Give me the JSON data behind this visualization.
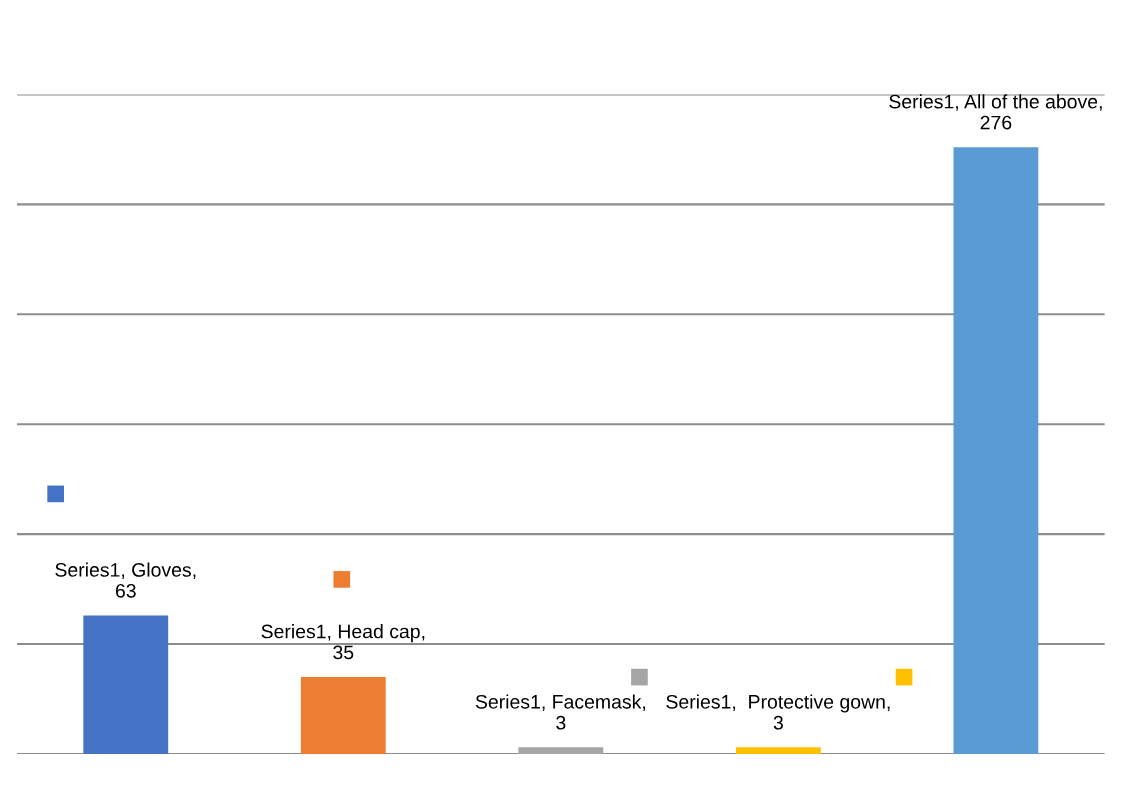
{
  "chart_data": {
    "type": "bar",
    "categories": [
      null,
      null,
      null,
      null,
      null
    ],
    "series": [
      {
        "values": [
          63,
          35,
          3,
          3,
          276
        ],
        "colors": [
          "#4472c4",
          "#ed7d31",
          "#a5a5a5",
          "#ffc000",
          "#5b9bd5"
        ],
        "value_labels": [
          "Series1, Gloves, 63",
          "Series1, Head cap, 35",
          "Series1, Facemask, 3",
          "Series1,  Protective gown, 3",
          "Series1, All of the above, 276"
        ]
      }
    ],
    "ylim": [
      0,
      300
    ],
    "yticks": [
      {
        "value": 0,
        "label": null
      },
      {
        "value": 50,
        "label": null
      },
      {
        "value": 100,
        "label": null
      },
      {
        "value": 150,
        "label": null
      },
      {
        "value": 200,
        "label": null
      },
      {
        "value": 250,
        "label": null
      },
      {
        "value": 300,
        "label": null
      }
    ],
    "grid": "y",
    "legend": false
  }
}
